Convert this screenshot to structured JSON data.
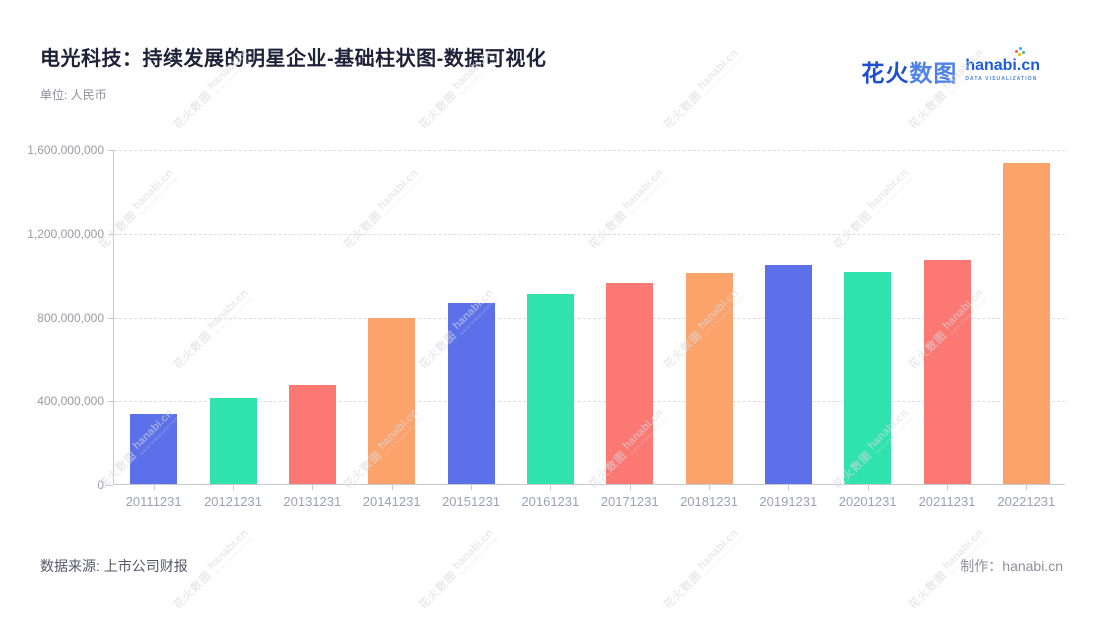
{
  "header": {
    "title": "电光科技：持续发展的明星企业-基础柱状图-数据可视化",
    "subtitle": "单位: 人民币",
    "logo": {
      "cn_part1": "花火",
      "cn_part2": "数图",
      "en": "hanabi.cn",
      "tagline": "DATA VISUALIZATION"
    }
  },
  "footer": {
    "source": "数据来源: 上市公司财报",
    "credit": "制作：hanabi.cn"
  },
  "watermark": {
    "cn": "花火数图",
    "en": "hanabi.cn",
    "tagline": "DATA VISUALIZATION"
  },
  "chart_data": {
    "type": "bar",
    "title": "电光科技：持续发展的明星企业-基础柱状图-数据可视化",
    "unit_label": "单位: 人民币",
    "categories": [
      "20111231",
      "20121231",
      "20131231",
      "20141231",
      "20151231",
      "20161231",
      "20171231",
      "20181231",
      "20191231",
      "20201231",
      "20211231",
      "20221231"
    ],
    "values": [
      335000000,
      413000000,
      472000000,
      792000000,
      863000000,
      908000000,
      960000000,
      1010000000,
      1046000000,
      1012000000,
      1070000000,
      1532000000
    ],
    "bar_colors_cycle": [
      "#5B70E9",
      "#30E3AC",
      "#FC7873",
      "#FCA36C"
    ],
    "ylim": [
      0,
      1600000000
    ],
    "ytick_step": 400000000,
    "ytick_labels": [
      "0",
      "400,000,000",
      "800,000,000",
      "1,200,000,000",
      "1,600,000,000"
    ],
    "grid": "horizontal-dashed",
    "legend": "none",
    "xlabel": "",
    "ylabel": ""
  }
}
